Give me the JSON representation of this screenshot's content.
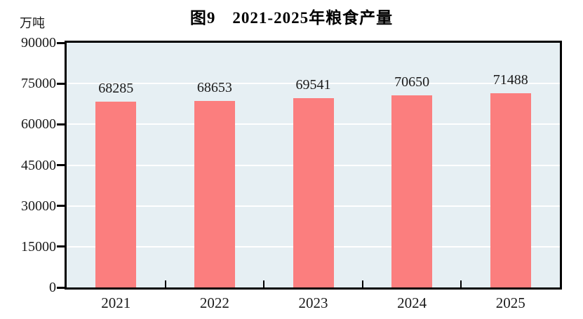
{
  "page": {
    "background": "#FFFFFF"
  },
  "chart_data": {
    "type": "bar",
    "title": "图9　2021-2025年粮食产量",
    "unit_label": "万吨",
    "categories": [
      "2021",
      "2022",
      "2023",
      "2024",
      "2025"
    ],
    "values": [
      68285,
      68653,
      69541,
      70650,
      71488
    ],
    "data_labels": [
      "68285",
      "68653",
      "69541",
      "70650",
      "71488"
    ],
    "xlabel": "",
    "ylabel": "万吨",
    "ylim": [
      0,
      90000
    ],
    "yticks": [
      0,
      15000,
      30000,
      45000,
      60000,
      75000,
      90000
    ],
    "ytick_labels": [
      "0",
      "15000",
      "30000",
      "45000",
      "60000",
      "75000",
      "90000"
    ],
    "grid": true,
    "gridline_color": "#FFFFFF",
    "legend_position": "none",
    "colors": {
      "bar": "#FB7E7E",
      "plot_background": "#E6EFF3",
      "axis": "#000000",
      "text": "#1A1A1A"
    }
  }
}
